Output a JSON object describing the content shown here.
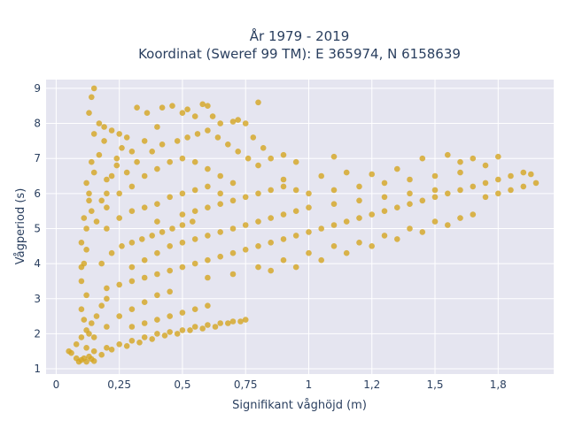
{
  "chart_data": {
    "type": "scatter",
    "title_line1": "År 1979 - 2019",
    "title_line2": "Koordinat (Sweref 99 TM): E 365974, N 6158639",
    "xlabel": "Signifikant våghöjd (m)",
    "ylabel": "Vågperiod (s)",
    "xlim": [
      -0.04,
      1.97
    ],
    "ylim": [
      0.85,
      9.25
    ],
    "xticks": [
      {
        "value": 0,
        "label": "0"
      },
      {
        "value": 0.25,
        "label": "0,25"
      },
      {
        "value": 0.5,
        "label": "0,5"
      },
      {
        "value": 0.75,
        "label": "0,75"
      },
      {
        "value": 1,
        "label": "1"
      },
      {
        "value": 1.25,
        "label": "1,2"
      },
      {
        "value": 1.5,
        "label": "1,5"
      },
      {
        "value": 1.75,
        "label": "1,8"
      }
    ],
    "yticks": [
      {
        "value": 1,
        "label": "1"
      },
      {
        "value": 2,
        "label": "2"
      },
      {
        "value": 3,
        "label": "3"
      },
      {
        "value": 4,
        "label": "4"
      },
      {
        "value": 5,
        "label": "5"
      },
      {
        "value": 6,
        "label": "6"
      },
      {
        "value": 7,
        "label": "7"
      },
      {
        "value": 8,
        "label": "8"
      },
      {
        "value": 9,
        "label": "9"
      }
    ],
    "grid": true,
    "marker_color": "#d4a520",
    "background_color": "#e5e5f0",
    "points": [
      [
        0.05,
        1.5
      ],
      [
        0.06,
        1.45
      ],
      [
        0.08,
        1.3
      ],
      [
        0.09,
        1.2
      ],
      [
        0.1,
        1.25
      ],
      [
        0.11,
        1.3
      ],
      [
        0.12,
        1.2
      ],
      [
        0.13,
        1.35
      ],
      [
        0.14,
        1.28
      ],
      [
        0.15,
        1.22
      ],
      [
        0.08,
        1.7
      ],
      [
        0.1,
        1.9
      ],
      [
        0.12,
        2.1
      ],
      [
        0.14,
        2.3
      ],
      [
        0.16,
        2.5
      ],
      [
        0.18,
        2.8
      ],
      [
        0.2,
        3.0
      ],
      [
        0.12,
        3.1
      ],
      [
        0.1,
        3.5
      ],
      [
        0.11,
        4.0
      ],
      [
        0.1,
        4.6
      ],
      [
        0.12,
        5.0
      ],
      [
        0.14,
        5.5
      ],
      [
        0.13,
        6.0
      ],
      [
        0.15,
        6.6
      ],
      [
        0.17,
        7.1
      ],
      [
        0.19,
        7.5
      ],
      [
        0.22,
        7.8
      ],
      [
        0.25,
        7.7
      ],
      [
        0.28,
        7.6
      ],
      [
        0.12,
        6.3
      ],
      [
        0.14,
        6.9
      ],
      [
        0.2,
        6.4
      ],
      [
        0.24,
        6.8
      ],
      [
        0.3,
        7.2
      ],
      [
        0.35,
        7.5
      ],
      [
        0.4,
        7.9
      ],
      [
        0.42,
        8.45
      ],
      [
        0.46,
        8.5
      ],
      [
        0.5,
        8.3
      ],
      [
        0.52,
        8.4
      ],
      [
        0.55,
        8.2
      ],
      [
        0.58,
        8.55
      ],
      [
        0.6,
        8.5
      ],
      [
        0.62,
        8.2
      ],
      [
        0.65,
        8.0
      ],
      [
        0.7,
        8.05
      ],
      [
        0.72,
        8.1
      ],
      [
        0.75,
        8.0
      ],
      [
        0.78,
        7.6
      ],
      [
        0.14,
        8.75
      ],
      [
        0.15,
        9.0
      ],
      [
        0.13,
        8.3
      ],
      [
        0.32,
        8.45
      ],
      [
        0.36,
        8.3
      ],
      [
        0.8,
        8.6
      ],
      [
        0.82,
        7.3
      ],
      [
        0.85,
        7.0
      ],
      [
        0.9,
        7.1
      ],
      [
        0.95,
        6.9
      ],
      [
        0.25,
        6.0
      ],
      [
        0.3,
        6.2
      ],
      [
        0.35,
        6.5
      ],
      [
        0.4,
        6.7
      ],
      [
        0.45,
        6.9
      ],
      [
        0.5,
        7.0
      ],
      [
        0.55,
        6.9
      ],
      [
        0.6,
        6.7
      ],
      [
        0.65,
        6.5
      ],
      [
        0.7,
        6.3
      ],
      [
        0.2,
        5.0
      ],
      [
        0.25,
        5.3
      ],
      [
        0.3,
        5.5
      ],
      [
        0.35,
        5.6
      ],
      [
        0.4,
        5.7
      ],
      [
        0.45,
        5.9
      ],
      [
        0.5,
        6.0
      ],
      [
        0.55,
        6.1
      ],
      [
        0.6,
        6.2
      ],
      [
        0.65,
        6.0
      ],
      [
        0.18,
        4.0
      ],
      [
        0.22,
        4.3
      ],
      [
        0.26,
        4.5
      ],
      [
        0.3,
        4.6
      ],
      [
        0.34,
        4.7
      ],
      [
        0.38,
        4.8
      ],
      [
        0.42,
        4.9
      ],
      [
        0.46,
        5.0
      ],
      [
        0.5,
        5.1
      ],
      [
        0.54,
        5.2
      ],
      [
        0.2,
        3.3
      ],
      [
        0.25,
        3.4
      ],
      [
        0.3,
        3.5
      ],
      [
        0.35,
        3.6
      ],
      [
        0.4,
        3.7
      ],
      [
        0.45,
        3.8
      ],
      [
        0.5,
        3.9
      ],
      [
        0.55,
        4.0
      ],
      [
        0.6,
        4.1
      ],
      [
        0.65,
        4.2
      ],
      [
        0.7,
        4.3
      ],
      [
        0.75,
        4.4
      ],
      [
        0.8,
        4.5
      ],
      [
        0.85,
        4.6
      ],
      [
        0.9,
        4.7
      ],
      [
        0.95,
        4.8
      ],
      [
        1.0,
        4.9
      ],
      [
        1.05,
        5.0
      ],
      [
        1.1,
        5.1
      ],
      [
        1.15,
        5.2
      ],
      [
        1.2,
        5.3
      ],
      [
        1.25,
        5.4
      ],
      [
        1.3,
        5.5
      ],
      [
        1.35,
        5.6
      ],
      [
        1.4,
        5.7
      ],
      [
        1.45,
        5.8
      ],
      [
        1.5,
        5.9
      ],
      [
        1.55,
        6.0
      ],
      [
        1.6,
        6.1
      ],
      [
        1.65,
        6.2
      ],
      [
        1.7,
        6.3
      ],
      [
        1.75,
        6.4
      ],
      [
        1.8,
        6.5
      ],
      [
        1.85,
        6.6
      ],
      [
        1.88,
        6.55
      ],
      [
        1.9,
        6.3
      ],
      [
        1.85,
        6.2
      ],
      [
        1.8,
        6.1
      ],
      [
        1.75,
        6.0
      ],
      [
        1.7,
        5.9
      ],
      [
        0.6,
        3.6
      ],
      [
        0.7,
        3.7
      ],
      [
        0.8,
        3.9
      ],
      [
        0.9,
        4.1
      ],
      [
        1.0,
        4.3
      ],
      [
        1.1,
        4.5
      ],
      [
        1.2,
        4.6
      ],
      [
        1.3,
        4.8
      ],
      [
        1.4,
        5.0
      ],
      [
        1.5,
        5.2
      ],
      [
        1.6,
        5.3
      ],
      [
        1.65,
        5.4
      ],
      [
        1.55,
        5.1
      ],
      [
        1.45,
        4.9
      ],
      [
        1.35,
        4.7
      ],
      [
        1.25,
        4.5
      ],
      [
        1.15,
        4.3
      ],
      [
        1.05,
        4.1
      ],
      [
        0.95,
        3.9
      ],
      [
        0.85,
        3.8
      ],
      [
        1.0,
        6.0
      ],
      [
        1.1,
        6.1
      ],
      [
        1.2,
        6.2
      ],
      [
        1.3,
        6.3
      ],
      [
        1.4,
        6.4
      ],
      [
        1.5,
        6.5
      ],
      [
        1.6,
        6.6
      ],
      [
        1.05,
        6.5
      ],
      [
        1.15,
        6.6
      ],
      [
        1.25,
        6.55
      ],
      [
        0.9,
        6.4
      ],
      [
        0.95,
        6.1
      ],
      [
        1.35,
        6.7
      ],
      [
        1.45,
        7.0
      ],
      [
        1.55,
        7.1
      ],
      [
        1.65,
        7.0
      ],
      [
        1.75,
        7.05
      ],
      [
        1.7,
        6.8
      ],
      [
        1.6,
        6.9
      ],
      [
        1.1,
        7.05
      ],
      [
        0.15,
        1.5
      ],
      [
        0.2,
        1.6
      ],
      [
        0.25,
        1.7
      ],
      [
        0.3,
        1.8
      ],
      [
        0.35,
        1.9
      ],
      [
        0.4,
        2.0
      ],
      [
        0.45,
        2.05
      ],
      [
        0.5,
        2.1
      ],
      [
        0.55,
        2.2
      ],
      [
        0.6,
        2.25
      ],
      [
        0.65,
        2.3
      ],
      [
        0.7,
        2.35
      ],
      [
        0.75,
        2.4
      ],
      [
        0.3,
        2.2
      ],
      [
        0.35,
        2.3
      ],
      [
        0.4,
        2.4
      ],
      [
        0.45,
        2.5
      ],
      [
        0.5,
        2.6
      ],
      [
        0.55,
        2.7
      ],
      [
        0.6,
        2.8
      ],
      [
        0.3,
        2.7
      ],
      [
        0.35,
        2.9
      ],
      [
        0.4,
        3.1
      ],
      [
        0.45,
        3.2
      ],
      [
        0.25,
        2.5
      ],
      [
        0.2,
        2.2
      ],
      [
        0.15,
        1.9
      ],
      [
        0.12,
        1.6
      ],
      [
        0.18,
        1.4
      ],
      [
        0.22,
        1.55
      ],
      [
        0.28,
        1.65
      ],
      [
        0.33,
        1.75
      ],
      [
        0.38,
        1.85
      ],
      [
        0.43,
        1.95
      ],
      [
        0.48,
        2.0
      ],
      [
        0.53,
        2.1
      ],
      [
        0.58,
        2.15
      ],
      [
        0.63,
        2.2
      ],
      [
        0.68,
        2.3
      ],
      [
        0.73,
        2.35
      ],
      [
        0.3,
        3.9
      ],
      [
        0.35,
        4.1
      ],
      [
        0.4,
        4.3
      ],
      [
        0.45,
        4.5
      ],
      [
        0.5,
        4.6
      ],
      [
        0.55,
        4.7
      ],
      [
        0.6,
        4.8
      ],
      [
        0.65,
        4.9
      ],
      [
        0.7,
        5.0
      ],
      [
        0.75,
        5.1
      ],
      [
        0.8,
        5.2
      ],
      [
        0.85,
        5.3
      ],
      [
        0.9,
        5.4
      ],
      [
        0.95,
        5.5
      ],
      [
        1.0,
        5.6
      ],
      [
        1.1,
        5.7
      ],
      [
        1.2,
        5.8
      ],
      [
        1.3,
        5.9
      ],
      [
        1.4,
        6.0
      ],
      [
        1.5,
        6.1
      ],
      [
        0.2,
        6.0
      ],
      [
        0.22,
        6.5
      ],
      [
        0.24,
        7.0
      ],
      [
        0.26,
        7.3
      ],
      [
        0.18,
        5.8
      ],
      [
        0.16,
        5.2
      ],
      [
        0.2,
        5.6
      ],
      [
        0.28,
        6.6
      ],
      [
        0.32,
        6.9
      ],
      [
        0.38,
        7.2
      ],
      [
        0.42,
        7.4
      ],
      [
        0.48,
        7.5
      ],
      [
        0.52,
        7.6
      ],
      [
        0.56,
        7.7
      ],
      [
        0.6,
        7.8
      ],
      [
        0.64,
        7.6
      ],
      [
        0.68,
        7.4
      ],
      [
        0.72,
        7.2
      ],
      [
        0.76,
        7.0
      ],
      [
        0.8,
        6.8
      ],
      [
        0.5,
        5.4
      ],
      [
        0.55,
        5.5
      ],
      [
        0.6,
        5.6
      ],
      [
        0.65,
        5.7
      ],
      [
        0.7,
        5.8
      ],
      [
        0.75,
        5.9
      ],
      [
        0.8,
        6.0
      ],
      [
        0.85,
        6.1
      ],
      [
        0.9,
        6.2
      ],
      [
        0.4,
        5.2
      ],
      [
        0.1,
        2.7
      ],
      [
        0.11,
        2.4
      ],
      [
        0.13,
        2.0
      ],
      [
        0.1,
        3.9
      ],
      [
        0.12,
        4.4
      ],
      [
        0.11,
        5.3
      ],
      [
        0.13,
        5.8
      ],
      [
        0.15,
        7.7
      ],
      [
        0.17,
        8.0
      ],
      [
        0.19,
        7.9
      ]
    ]
  }
}
